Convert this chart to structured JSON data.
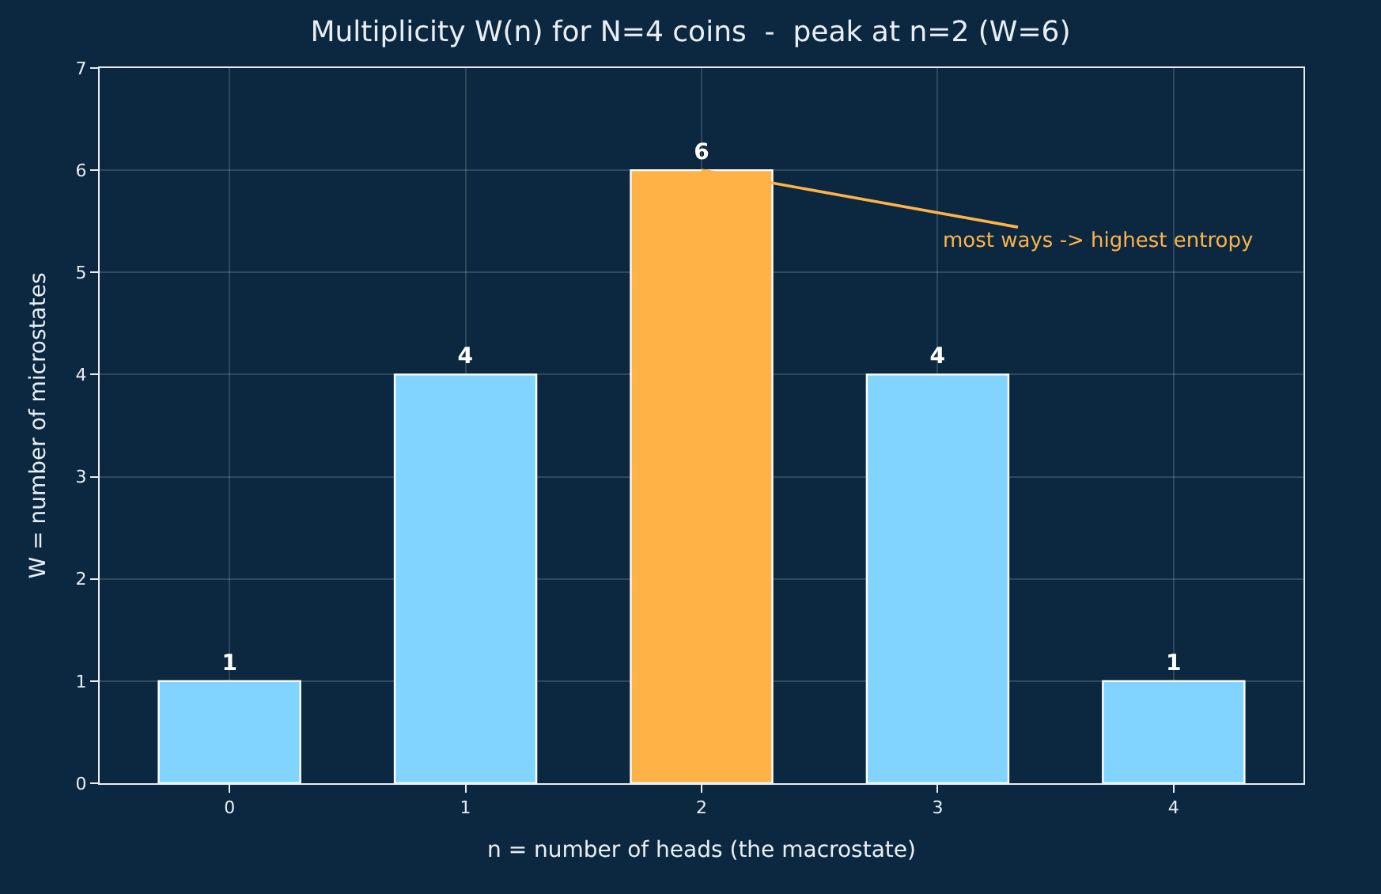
{
  "chart_data": {
    "type": "bar",
    "title": "Multiplicity W(n) for N=4 coins  -  peak at n=2 (W=6)",
    "xlabel": "n = number of heads (the macrostate)",
    "ylabel": "W = number of microstates",
    "categories": [
      "0",
      "1",
      "2",
      "3",
      "4"
    ],
    "values": [
      1,
      4,
      6,
      4,
      1
    ],
    "colors": [
      "#80d4ff",
      "#80d4ff",
      "#ffb347",
      "#80d4ff",
      "#80d4ff"
    ],
    "ylim": [
      0,
      7
    ],
    "yticks": [
      0,
      1,
      2,
      3,
      4,
      5,
      6,
      7
    ],
    "grid": true,
    "data_labels": true,
    "annotations": [
      {
        "text": "most ways -> highest entropy",
        "x": "2",
        "y": 6
      }
    ]
  }
}
